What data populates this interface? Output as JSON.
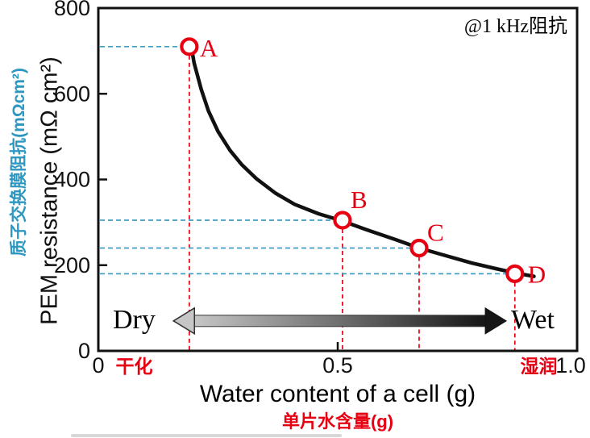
{
  "chart_data": {
    "type": "line",
    "annotation": "@1 kHz阻抗",
    "xlabel": "Water content of a cell (g)",
    "xlabel_cn": "单片水含量(g)",
    "ylabel": "PEM resistance (mΩ cm²)",
    "ylabel_cn": "质子交换膜阻抗(mΩcm²)",
    "xlim": [
      0,
      1.0
    ],
    "ylim": [
      0,
      800
    ],
    "xticks": [
      0,
      0.5,
      1.0
    ],
    "xtick_labels": [
      "0",
      "0.5",
      "1.0"
    ],
    "yticks": [
      0,
      200,
      400,
      600,
      800
    ],
    "ytick_labels": [
      "0",
      "200",
      "400",
      "600",
      "800"
    ],
    "x_axis_annotations": [
      {
        "label": "干化",
        "x": 0.075
      },
      {
        "label": "湿润",
        "x": 0.92
      }
    ],
    "points": [
      {
        "label": "A",
        "x": 0.19,
        "y": 710,
        "label_offset": [
          13,
          12
        ]
      },
      {
        "label": "B",
        "x": 0.51,
        "y": 305,
        "label_offset": [
          10,
          -15
        ]
      },
      {
        "label": "C",
        "x": 0.67,
        "y": 240,
        "label_offset": [
          10,
          -9
        ]
      },
      {
        "label": "D",
        "x": 0.87,
        "y": 180,
        "label_offset": [
          16,
          11
        ]
      }
    ],
    "curve": [
      [
        0.193,
        719
      ],
      [
        0.2,
        672
      ],
      [
        0.215,
        610
      ],
      [
        0.23,
        560
      ],
      [
        0.25,
        512
      ],
      [
        0.275,
        468
      ],
      [
        0.3,
        434
      ],
      [
        0.33,
        402
      ],
      [
        0.37,
        368
      ],
      [
        0.41,
        342
      ],
      [
        0.46,
        320
      ],
      [
        0.51,
        303
      ],
      [
        0.56,
        283
      ],
      [
        0.62,
        260
      ],
      [
        0.67,
        240
      ],
      [
        0.72,
        224
      ],
      [
        0.78,
        205
      ],
      [
        0.83,
        192
      ],
      [
        0.87,
        182
      ],
      [
        0.91,
        174
      ]
    ],
    "arrow": {
      "left_label": "Dry",
      "right_label": "Wet",
      "x_start": 0.157,
      "x_end": 0.852,
      "y": 70
    },
    "colors": {
      "curve": "#111111",
      "red": "#e60012",
      "blue_guide": "#3f9fc4",
      "blue_text": "#2e97c0",
      "axis": "#111111",
      "arrow_light": "#c6c6c6",
      "arrow_dark": "#161616"
    }
  }
}
